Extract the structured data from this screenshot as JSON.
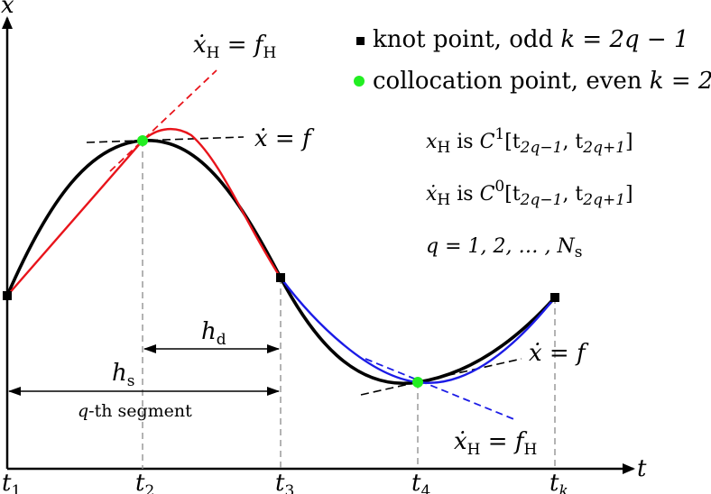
{
  "axes": {
    "x_label": "t",
    "y_label": "x"
  },
  "ticks": [
    {
      "base": "t",
      "sub": "1"
    },
    {
      "base": "t",
      "sub": "2"
    },
    {
      "base": "t",
      "sub": "3"
    },
    {
      "base": "t",
      "sub": "4"
    },
    {
      "base": "t",
      "sub": "k"
    }
  ],
  "legend": {
    "knot": {
      "text": "knot point, odd ",
      "math": "k = 2q − 1"
    },
    "collocation": {
      "text": "collocation point, even ",
      "math": "k = 2q"
    }
  },
  "conditions": [
    {
      "lhs": "x",
      "lhs_sub": "H",
      "mid": " is ",
      "cls": "C",
      "sup": "1",
      "interval": "[t",
      "i1": "2q−1",
      "comma": ", t",
      "i2": "2q+1",
      "close": "]"
    },
    {
      "lhs": "ẋ",
      "lhs_sub": "H",
      "mid": " is ",
      "cls": "C",
      "sup": "0",
      "interval": "[t",
      "i1": "2q−1",
      "comma": ", t",
      "i2": "2q+1",
      "close": "]"
    },
    {
      "text": "q = 1, 2, … , N",
      "sub": "s"
    }
  ],
  "annotations": {
    "slope_h_top": {
      "lhs": "ẋ",
      "lhs_sub": "H",
      "eq": " = f",
      "rhs_sub": "H"
    },
    "slope_top": {
      "text": "ẋ = f"
    },
    "slope_bottom": {
      "text": "ẋ = f"
    },
    "slope_h_bottom": {
      "lhs": "ẋ",
      "lhs_sub": "H",
      "eq": " = f",
      "rhs_sub": "H"
    },
    "h_d": {
      "base": "h",
      "sub": "d"
    },
    "h_s": {
      "base": "h",
      "sub": "s"
    },
    "segment": {
      "math": "q",
      "text": "-th segment"
    }
  },
  "colors": {
    "true_curve": "#000000",
    "hermite_first": "#e8141b",
    "hermite_second": "#1b1be6",
    "collocation": "#22ee22",
    "knot": "#000000",
    "guide": "#9a9a9a"
  }
}
